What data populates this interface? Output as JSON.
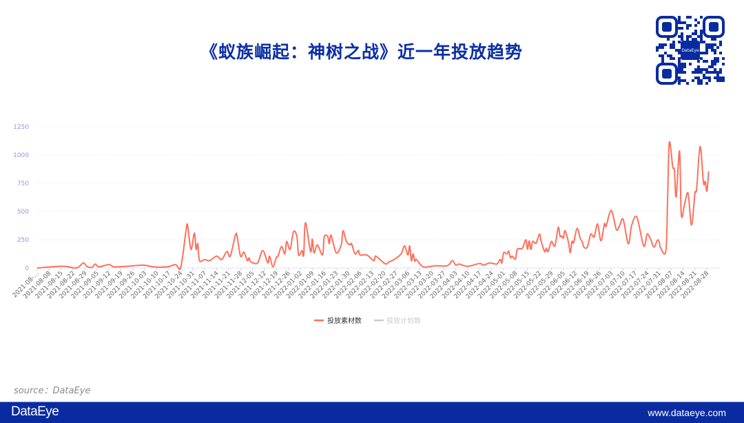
{
  "header": {
    "title": "《蚁族崛起：神树之战》近一年投放趋势",
    "qr_logo_text": "DataEye"
  },
  "source": "source：DataEye",
  "footer": {
    "logo": "DataEye",
    "url": "www.dataeye.com"
  },
  "colors": {
    "title": "#0b2fa6",
    "line": "#ff6f5c",
    "footer": "#0a2ba0",
    "axis_label": "#a58be6",
    "legend_inactive": "#cccccc"
  },
  "chart_data": {
    "type": "line",
    "title": "",
    "xlabel": "",
    "ylabel": "",
    "ylim": [
      0,
      1250
    ],
    "yticks": [
      "0",
      "250",
      "500",
      "750",
      "1000",
      "1250"
    ],
    "xlim": [
      "2021-08-01",
      "2022-08-31"
    ],
    "grid": true,
    "legend_placement": "bottom",
    "legend": [
      {
        "name": "投放素材数",
        "active": true
      },
      {
        "name": "投放计划数",
        "active": false
      }
    ],
    "xticks": [
      "2021-08-…",
      "2021-08-08",
      "2021-08-15",
      "2021-08-22",
      "2021-08-29",
      "2021-09-05",
      "2021-09-12",
      "2021-09-19",
      "2021-09-26",
      "2021-10-03",
      "2021-10-10",
      "2021-10-17",
      "2021-10-24",
      "2021-10-31",
      "2021-11-07",
      "2021-11-14",
      "2021-11-21",
      "2021-11-28",
      "2021-12-05",
      "2021-12-12",
      "2021-12-19",
      "2021-12-26",
      "2022-01-02",
      "2022-01-09",
      "2022-01-16",
      "2022-01-23",
      "2022-01-30",
      "2022-02-06",
      "2022-02-13",
      "2022-02-20",
      "2022-02-27",
      "2022-03-06",
      "2022-03-13",
      "2022-03-20",
      "2022-03-27",
      "2022-04-03",
      "2022-04-10",
      "2022-04-17",
      "2022-04-24",
      "2022-05-01",
      "2022-05-08",
      "2022-05-15",
      "2022-05-22",
      "2022-05-29",
      "2022-06-05",
      "2022-06-12",
      "2022-06-19",
      "2022-06-26",
      "2022-07-03",
      "2022-07-10",
      "2022-07-17",
      "2022-07-24",
      "2022-07-31",
      "2022-08-07",
      "2022-08-14",
      "2022-08-21",
      "2022-08-28"
    ],
    "series": [
      {
        "name": "投放素材数",
        "points": [
          [
            "2021-08-01",
            0
          ],
          [
            "2021-08-16",
            15
          ],
          [
            "2021-08-24",
            0
          ],
          [
            "2021-08-28",
            45
          ],
          [
            "2021-08-30",
            15
          ],
          [
            "2021-09-02",
            5
          ],
          [
            "2021-09-04",
            35
          ],
          [
            "2021-09-06",
            10
          ],
          [
            "2021-09-12",
            30
          ],
          [
            "2021-09-15",
            10
          ],
          [
            "2021-09-23",
            15
          ],
          [
            "2021-10-02",
            25
          ],
          [
            "2021-10-08",
            10
          ],
          [
            "2021-10-16",
            10
          ],
          [
            "2021-10-21",
            30
          ],
          [
            "2021-10-24",
            5
          ],
          [
            "2021-10-27",
            320
          ],
          [
            "2021-10-28",
            380
          ],
          [
            "2021-10-30",
            165
          ],
          [
            "2021-11-01",
            310
          ],
          [
            "2021-11-02",
            165
          ],
          [
            "2021-11-03",
            215
          ],
          [
            "2021-11-04",
            65
          ],
          [
            "2021-11-07",
            75
          ],
          [
            "2021-11-10",
            65
          ],
          [
            "2021-11-14",
            105
          ],
          [
            "2021-11-17",
            75
          ],
          [
            "2021-11-20",
            145
          ],
          [
            "2021-11-22",
            105
          ],
          [
            "2021-11-25",
            290
          ],
          [
            "2021-11-26",
            280
          ],
          [
            "2021-11-28",
            105
          ],
          [
            "2021-11-30",
            140
          ],
          [
            "2021-12-02",
            65
          ],
          [
            "2021-12-03",
            90
          ],
          [
            "2021-12-04",
            55
          ],
          [
            "2021-12-08",
            45
          ],
          [
            "2021-12-11",
            155
          ],
          [
            "2021-12-14",
            45
          ],
          [
            "2021-12-15",
            105
          ],
          [
            "2021-12-17",
            10
          ],
          [
            "2021-12-19",
            95
          ],
          [
            "2021-12-20",
            105
          ],
          [
            "2021-12-22",
            190
          ],
          [
            "2021-12-24",
            125
          ],
          [
            "2021-12-25",
            235
          ],
          [
            "2021-12-27",
            165
          ],
          [
            "2021-12-29",
            320
          ],
          [
            "2021-12-31",
            280
          ],
          [
            "2022-01-01",
            115
          ],
          [
            "2022-01-03",
            155
          ],
          [
            "2022-01-04",
            115
          ],
          [
            "2022-01-05",
            400
          ],
          [
            "2022-01-08",
            145
          ],
          [
            "2022-01-09",
            255
          ],
          [
            "2022-01-10",
            135
          ],
          [
            "2022-01-12",
            205
          ],
          [
            "2022-01-15",
            115
          ],
          [
            "2022-01-16",
            275
          ],
          [
            "2022-01-18",
            280
          ],
          [
            "2022-01-19",
            215
          ],
          [
            "2022-01-20",
            290
          ],
          [
            "2022-01-23",
            135
          ],
          [
            "2022-01-26",
            205
          ],
          [
            "2022-01-27",
            330
          ],
          [
            "2022-01-29",
            235
          ],
          [
            "2022-01-31",
            205
          ],
          [
            "2022-02-01",
            215
          ],
          [
            "2022-02-03",
            125
          ],
          [
            "2022-02-05",
            155
          ],
          [
            "2022-02-06",
            115
          ],
          [
            "2022-02-10",
            115
          ],
          [
            "2022-02-14",
            65
          ],
          [
            "2022-02-15",
            105
          ],
          [
            "2022-02-18",
            70
          ],
          [
            "2022-02-21",
            35
          ],
          [
            "2022-02-23",
            55
          ],
          [
            "2022-02-26",
            75
          ],
          [
            "2022-03-02",
            125
          ],
          [
            "2022-03-04",
            195
          ],
          [
            "2022-03-06",
            115
          ],
          [
            "2022-03-07",
            195
          ],
          [
            "2022-03-08",
            65
          ],
          [
            "2022-03-09",
            125
          ],
          [
            "2022-03-10",
            60
          ],
          [
            "2022-03-11",
            75
          ],
          [
            "2022-03-15",
            10
          ],
          [
            "2022-03-22",
            20
          ],
          [
            "2022-03-29",
            20
          ],
          [
            "2022-04-01",
            65
          ],
          [
            "2022-04-03",
            25
          ],
          [
            "2022-04-05",
            35
          ],
          [
            "2022-04-10",
            15
          ],
          [
            "2022-04-17",
            40
          ],
          [
            "2022-04-19",
            25
          ],
          [
            "2022-04-23",
            45
          ],
          [
            "2022-04-27",
            35
          ],
          [
            "2022-04-29",
            75
          ],
          [
            "2022-04-30",
            45
          ],
          [
            "2022-05-01",
            135
          ],
          [
            "2022-05-03",
            125
          ],
          [
            "2022-05-04",
            150
          ],
          [
            "2022-05-05",
            90
          ],
          [
            "2022-05-06",
            105
          ],
          [
            "2022-05-08",
            80
          ],
          [
            "2022-05-09",
            165
          ],
          [
            "2022-05-12",
            175
          ],
          [
            "2022-05-14",
            250
          ],
          [
            "2022-05-15",
            165
          ],
          [
            "2022-05-16",
            240
          ],
          [
            "2022-05-17",
            165
          ],
          [
            "2022-05-18",
            235
          ],
          [
            "2022-05-20",
            220
          ],
          [
            "2022-05-22",
            300
          ],
          [
            "2022-05-23",
            235
          ],
          [
            "2022-05-25",
            145
          ],
          [
            "2022-05-26",
            175
          ],
          [
            "2022-05-27",
            145
          ],
          [
            "2022-05-29",
            235
          ],
          [
            "2022-05-31",
            195
          ],
          [
            "2022-06-02",
            360
          ],
          [
            "2022-06-03",
            280
          ],
          [
            "2022-06-04",
            285
          ],
          [
            "2022-06-05",
            265
          ],
          [
            "2022-06-06",
            330
          ],
          [
            "2022-06-08",
            225
          ],
          [
            "2022-06-09",
            135
          ],
          [
            "2022-06-10",
            235
          ],
          [
            "2022-06-11",
            225
          ],
          [
            "2022-06-13",
            350
          ],
          [
            "2022-06-15",
            255
          ],
          [
            "2022-06-16",
            235
          ],
          [
            "2022-06-17",
            185
          ],
          [
            "2022-06-19",
            185
          ],
          [
            "2022-06-21",
            300
          ],
          [
            "2022-06-23",
            275
          ],
          [
            "2022-06-25",
            390
          ],
          [
            "2022-06-27",
            240
          ],
          [
            "2022-06-29",
            390
          ],
          [
            "2022-06-30",
            370
          ],
          [
            "2022-07-03",
            510
          ],
          [
            "2022-07-06",
            340
          ],
          [
            "2022-07-08",
            380
          ],
          [
            "2022-07-10",
            430
          ],
          [
            "2022-07-13",
            215
          ],
          [
            "2022-07-15",
            380
          ],
          [
            "2022-07-18",
            450
          ],
          [
            "2022-07-22",
            195
          ],
          [
            "2022-07-24",
            300
          ],
          [
            "2022-07-26",
            255
          ],
          [
            "2022-07-28",
            185
          ],
          [
            "2022-07-30",
            245
          ],
          [
            "2022-07-31",
            235
          ],
          [
            "2022-08-01",
            175
          ],
          [
            "2022-08-04",
            155
          ],
          [
            "2022-08-05",
            620
          ],
          [
            "2022-08-06",
            1110
          ],
          [
            "2022-08-08",
            895
          ],
          [
            "2022-08-09",
            865
          ],
          [
            "2022-08-10",
            630
          ],
          [
            "2022-08-12",
            1035
          ],
          [
            "2022-08-13",
            470
          ],
          [
            "2022-08-15",
            570
          ],
          [
            "2022-08-17",
            660
          ],
          [
            "2022-08-19",
            380
          ],
          [
            "2022-08-21",
            660
          ],
          [
            "2022-08-22",
            700
          ],
          [
            "2022-08-24",
            1075
          ],
          [
            "2022-08-26",
            755
          ],
          [
            "2022-08-27",
            765
          ],
          [
            "2022-08-28",
            680
          ],
          [
            "2022-08-29",
            855
          ]
        ]
      }
    ]
  }
}
